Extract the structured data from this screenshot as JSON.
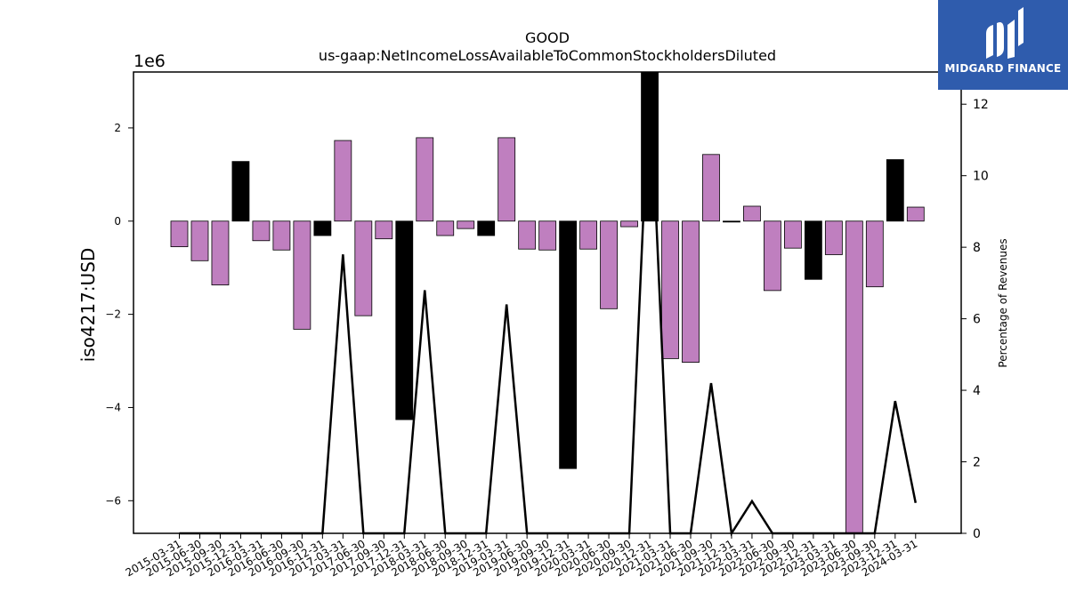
{
  "chart_data": {
    "type": "bar",
    "title": "GOOD",
    "subtitle": "us-gaap:NetIncomeLossAvailableToCommonStockholdersDiluted",
    "ylabel": "iso4217:USD",
    "y_offset_label": "1e6",
    "y2label": "Percentage of Revenues",
    "ylim": [
      -6700000,
      3200000
    ],
    "y2lim": [
      0,
      12.9
    ],
    "yticks": [
      -6,
      -4,
      -2,
      0,
      2
    ],
    "yticks_scale": 1000000,
    "y2ticks": [
      0,
      2,
      4,
      6,
      8,
      10,
      12
    ],
    "categories": [
      "2015-03-31",
      "2015-06-30",
      "2015-09-30",
      "2015-12-31",
      "2016-03-31",
      "2016-06-30",
      "2016-09-30",
      "2016-12-31",
      "2017-03-31",
      "2017-06-30",
      "2017-09-30",
      "2017-12-31",
      "2018-03-31",
      "2018-06-30",
      "2018-09-30",
      "2018-12-31",
      "2019-03-31",
      "2019-06-30",
      "2019-09-30",
      "2019-12-31",
      "2020-03-31",
      "2020-06-30",
      "2020-09-30",
      "2020-12-31",
      "2021-03-31",
      "2021-06-30",
      "2021-09-30",
      "2021-12-31",
      "2022-03-31",
      "2022-06-30",
      "2022-09-30",
      "2022-12-31",
      "2023-03-31",
      "2023-06-30",
      "2023-09-30",
      "2023-12-31",
      "2024-03-31"
    ],
    "series": [
      {
        "values": [
          -550000,
          -850000,
          -1370000,
          1280000,
          -420000,
          -620000,
          -2320000,
          -310000,
          1730000,
          -2030000,
          -380000,
          -4260000,
          1790000,
          -310000,
          -160000,
          -310000,
          1790000,
          -600000,
          -620000,
          -5310000,
          -600000,
          -1880000,
          -120000,
          3200000,
          -2950000,
          -3030000,
          1430000,
          -20000,
          320000,
          -1490000,
          -580000,
          -1250000,
          -720000,
          -6700000,
          -1410000,
          1320000,
          300000
        ],
        "colors": [
          "#bf7fbf",
          "#bf7fbf",
          "#bf7fbf",
          "#000000",
          "#bf7fbf",
          "#bf7fbf",
          "#bf7fbf",
          "#000000",
          "#bf7fbf",
          "#bf7fbf",
          "#bf7fbf",
          "#000000",
          "#bf7fbf",
          "#bf7fbf",
          "#bf7fbf",
          "#000000",
          "#bf7fbf",
          "#bf7fbf",
          "#bf7fbf",
          "#000000",
          "#bf7fbf",
          "#bf7fbf",
          "#bf7fbf",
          "#000000",
          "#bf7fbf",
          "#bf7fbf",
          "#bf7fbf",
          "#000000",
          "#bf7fbf",
          "#bf7fbf",
          "#bf7fbf",
          "#000000",
          "#bf7fbf",
          "#bf7fbf",
          "#bf7fbf",
          "#000000",
          "#bf7fbf"
        ]
      },
      {
        "type": "line",
        "axis": "right",
        "color": "#000000",
        "values": [
          0,
          0,
          0,
          0,
          0,
          0,
          0,
          0,
          7.8,
          0,
          0,
          0,
          6.8,
          0,
          0,
          0,
          6.4,
          0,
          0,
          0,
          0,
          0,
          0,
          12.9,
          0,
          0,
          4.2,
          0,
          0.9,
          0,
          0,
          0,
          0,
          0,
          0,
          3.7,
          0.85
        ]
      }
    ],
    "grid": false
  },
  "branding": {
    "logo_text": "MIDGARD FINANCE"
  }
}
